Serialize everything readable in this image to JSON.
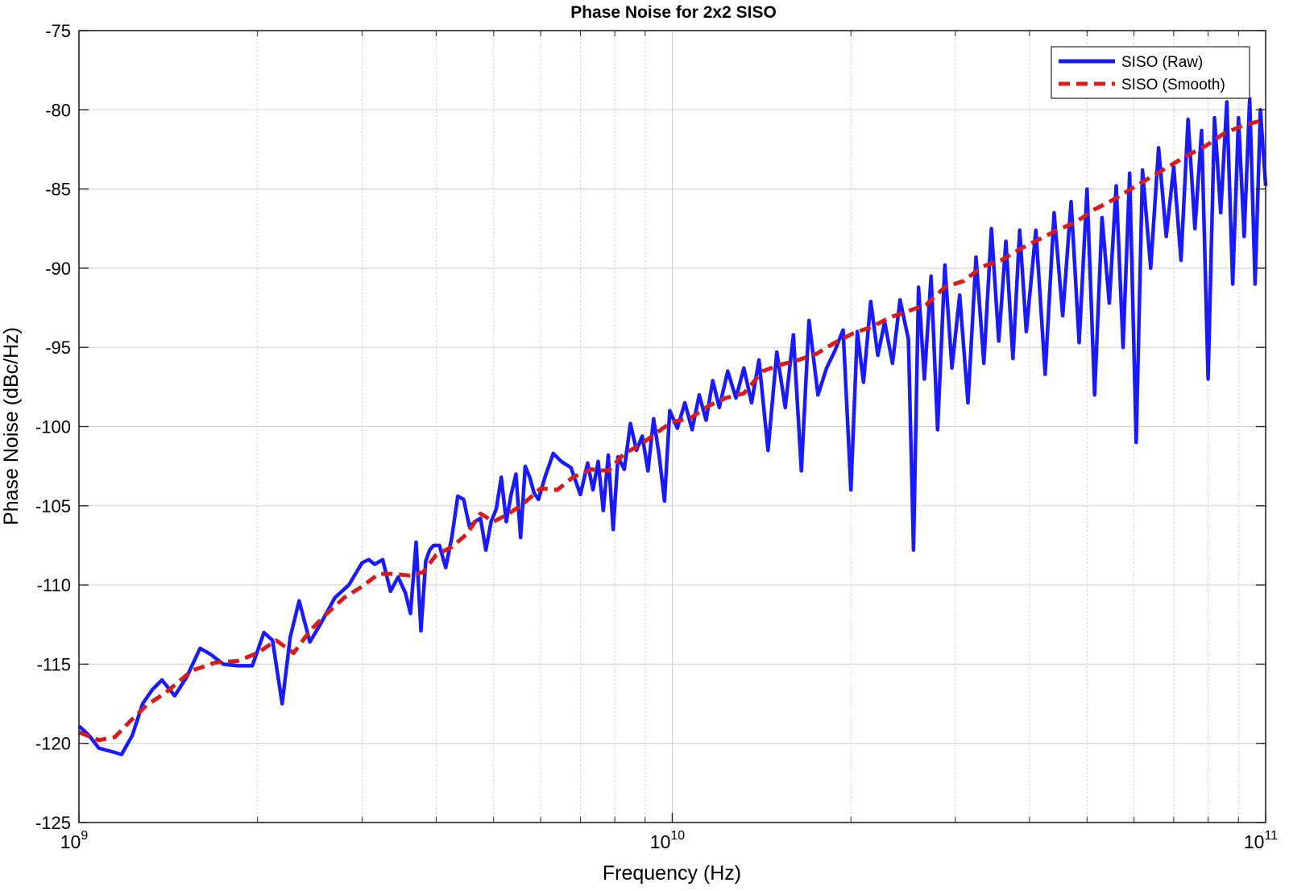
{
  "chart_data": {
    "type": "line",
    "title": "Phase Noise for 2x2 SISO",
    "xlabel": "Frequency (Hz)",
    "ylabel": "Phase Noise (dBc/Hz)",
    "x_scale": "log",
    "xlim": [
      1000000000.0,
      100000000000.0
    ],
    "ylim": [
      -125,
      -75
    ],
    "x_ticks": [
      {
        "value": 1000000000.0,
        "base": "10",
        "exp": "9"
      },
      {
        "value": 10000000000.0,
        "base": "10",
        "exp": "10"
      },
      {
        "value": 100000000000.0,
        "base": "10",
        "exp": "11"
      }
    ],
    "y_ticks": [
      {
        "value": -75,
        "label": "-75"
      },
      {
        "value": -80,
        "label": "-80"
      },
      {
        "value": -85,
        "label": "-85"
      },
      {
        "value": -90,
        "label": "-90"
      },
      {
        "value": -95,
        "label": "-95"
      },
      {
        "value": -100,
        "label": "-100"
      },
      {
        "value": -105,
        "label": "-105"
      },
      {
        "value": -110,
        "label": "-110"
      },
      {
        "value": -115,
        "label": "-115"
      },
      {
        "value": -120,
        "label": "-120"
      },
      {
        "value": -125,
        "label": "-125"
      }
    ],
    "grid": true,
    "minor_grid": true,
    "legend_position": "top-right",
    "series": [
      {
        "name": "SISO (Raw)",
        "color": "#1a1aff",
        "style": "solid",
        "x": [
          1000000000.0,
          1040000000.0,
          1080000000.0,
          1130000000.0,
          1180000000.0,
          1230000000.0,
          1280000000.0,
          1330000000.0,
          1380000000.0,
          1450000000.0,
          1520000000.0,
          1600000000.0,
          1670000000.0,
          1750000000.0,
          1850000000.0,
          1960000000.0,
          2050000000.0,
          2120000000.0,
          2200000000.0,
          2270000000.0,
          2350000000.0,
          2450000000.0,
          2550000000.0,
          2700000000.0,
          2850000000.0,
          3000000000.0,
          3080000000.0,
          3150000000.0,
          3250000000.0,
          3350000000.0,
          3450000000.0,
          3550000000.0,
          3620000000.0,
          3700000000.0,
          3770000000.0,
          3840000000.0,
          3900000000.0,
          3960000000.0,
          4050000000.0,
          4150000000.0,
          4250000000.0,
          4350000000.0,
          4450000000.0,
          4550000000.0,
          4650000000.0,
          4750000000.0,
          4850000000.0,
          4950000000.0,
          5050000000.0,
          5150000000.0,
          5250000000.0,
          5350000000.0,
          5450000000.0,
          5550000000.0,
          5650000000.0,
          5750000000.0,
          5850000000.0,
          5950000000.0,
          6100000000.0,
          6300000000.0,
          6500000000.0,
          6750000000.0,
          7000000000.0,
          7200000000.0,
          7350000000.0,
          7500000000.0,
          7650000000.0,
          7800000000.0,
          7950000000.0,
          8100000000.0,
          8300000000.0,
          8500000000.0,
          8700000000.0,
          8900000000.0,
          9100000000.0,
          9300000000.0,
          9500000000.0,
          9700000000.0,
          9900000000.0,
          10200000000.0,
          10500000000.0,
          10800000000.0,
          11100000000.0,
          11400000000.0,
          11700000000.0,
          12000000000.0,
          12400000000.0,
          12800000000.0,
          13200000000.0,
          13600000000.0,
          14000000000.0,
          14500000000.0,
          15000000000.0,
          15500000000.0,
          16000000000.0,
          16500000000.0,
          17000000000.0,
          17600000000.0,
          18200000000.0,
          18800000000.0,
          19400000000.0,
          20000000000.0,
          20500000000.0,
          21000000000.0,
          21600000000.0,
          22200000000.0,
          22800000000.0,
          23500000000.0,
          24200000000.0,
          25000000000.0,
          25500000000.0,
          26000000000.0,
          26600000000.0,
          27300000000.0,
          28000000000.0,
          28800000000.0,
          29600000000.0,
          30500000000.0,
          31500000000.0,
          32500000000.0,
          33500000000.0,
          34500000000.0,
          35500000000.0,
          36500000000.0,
          37500000000.0,
          38500000000.0,
          39500000000.0,
          41000000000.0,
          42500000000.0,
          44000000000.0,
          45500000000.0,
          47000000000.0,
          48500000000.0,
          50000000000.0,
          51500000000.0,
          53000000000.0,
          54500000000.0,
          56000000000.0,
          57500000000.0,
          59000000000.0,
          60500000000.0,
          62000000000.0,
          64000000000.0,
          66000000000.0,
          68000000000.0,
          70000000000.0,
          72000000000.0,
          74000000000.0,
          76000000000.0,
          78000000000.0,
          80000000000.0,
          82000000000.0,
          84000000000.0,
          86000000000.0,
          88000000000.0,
          90000000000.0,
          92000000000.0,
          94000000000.0,
          96000000000.0,
          98000000000.0,
          100000000000.0
        ],
        "y": [
          -118.9,
          -119.5,
          -120.3,
          -120.5,
          -120.7,
          -119.5,
          -117.5,
          -116.6,
          -116.0,
          -117.0,
          -115.8,
          -114.0,
          -114.4,
          -115.0,
          -115.1,
          -115.1,
          -113.0,
          -113.5,
          -117.5,
          -113.3,
          -111.0,
          -113.6,
          -112.5,
          -110.8,
          -110.0,
          -108.6,
          -108.4,
          -108.7,
          -108.4,
          -110.4,
          -109.5,
          -110.5,
          -111.8,
          -107.3,
          -112.9,
          -108.5,
          -107.8,
          -107.5,
          -107.5,
          -108.9,
          -107.0,
          -104.4,
          -104.6,
          -106.3,
          -106.0,
          -105.8,
          -107.8,
          -106.0,
          -105.2,
          -103.2,
          -106.0,
          -104.3,
          -103.0,
          -107.0,
          -102.5,
          -103.2,
          -104.2,
          -104.6,
          -103.2,
          -101.7,
          -102.2,
          -102.6,
          -104.3,
          -102.3,
          -104.0,
          -102.2,
          -105.3,
          -101.8,
          -106.5,
          -101.9,
          -102.7,
          -99.8,
          -101.5,
          -100.6,
          -102.8,
          -99.5,
          -101.8,
          -104.7,
          -99.0,
          -100.1,
          -98.5,
          -100.2,
          -98.0,
          -99.6,
          -97.1,
          -98.8,
          -96.5,
          -98.2,
          -96.3,
          -98.5,
          -95.8,
          -101.5,
          -95.3,
          -98.8,
          -94.2,
          -102.8,
          -93.3,
          -98.0,
          -96.3,
          -95.2,
          -93.9,
          -104.0,
          -94.0,
          -97.2,
          -92.1,
          -95.5,
          -93.4,
          -96.0,
          -92.0,
          -94.5,
          -107.8,
          -91.2,
          -97.0,
          -90.5,
          -100.2,
          -89.8,
          -96.3,
          -91.7,
          -98.5,
          -89.3,
          -96.0,
          -87.5,
          -94.6,
          -88.3,
          -95.7,
          -87.6,
          -94.0,
          -87.6,
          -96.7,
          -86.5,
          -93.0,
          -85.8,
          -94.7,
          -85.0,
          -98.0,
          -86.8,
          -92.2,
          -84.8,
          -95.0,
          -84.0,
          -101.0,
          -83.8,
          -90.0,
          -82.4,
          -88.0,
          -83.6,
          -89.5,
          -80.6,
          -87.5,
          -81.3,
          -97.0,
          -80.5,
          -86.5,
          -79.5,
          -91.0,
          -80.5,
          -88.0,
          -79.3,
          -91.0,
          -80.0,
          -84.8
        ]
      },
      {
        "name": "SISO (Smooth)",
        "color": "#d81b1b",
        "style": "dashed",
        "x": [
          1000000000.0,
          1080000000.0,
          1150000000.0,
          1220000000.0,
          1300000000.0,
          1400000000.0,
          1550000000.0,
          1700000000.0,
          1850000000.0,
          2000000000.0,
          2150000000.0,
          2300000000.0,
          2450000000.0,
          2600000000.0,
          2800000000.0,
          3000000000.0,
          3200000000.0,
          3400000000.0,
          3600000000.0,
          3800000000.0,
          4000000000.0,
          4250000000.0,
          4500000000.0,
          4750000000.0,
          5000000000.0,
          5300000000.0,
          5600000000.0,
          6000000000.0,
          6400000000.0,
          6800000000.0,
          7300000000.0,
          7800000000.0,
          8300000000.0,
          8800000000.0,
          9400000000.0,
          10000000000.0,
          10700000000.0,
          11500000000.0,
          12300000000.0,
          13200000000.0,
          14200000000.0,
          15200000000.0,
          16300000000.0,
          17500000000.0,
          18800000000.0,
          20200000000.0,
          21700000000.0,
          23300000000.0,
          25000000000.0,
          26800000000.0,
          28800000000.0,
          31000000000.0,
          33300000000.0,
          35800000000.0,
          38500000000.0,
          41400000000.0,
          44500000000.0,
          47800000000.0,
          51400000000.0,
          55200000000.0,
          59300000000.0,
          63700000000.0,
          68500000000.0,
          73600000000.0,
          79100000000.0,
          85000000000.0,
          91400000000.0,
          100000000000.0
        ],
        "y": [
          -119.3,
          -119.8,
          -119.6,
          -118.6,
          -117.6,
          -116.8,
          -115.4,
          -114.9,
          -114.8,
          -114.3,
          -113.5,
          -114.3,
          -112.9,
          -111.9,
          -110.8,
          -110.1,
          -109.3,
          -109.3,
          -109.4,
          -109.2,
          -108.1,
          -107.6,
          -106.8,
          -105.5,
          -106.0,
          -105.5,
          -104.9,
          -103.9,
          -104.0,
          -103.2,
          -102.7,
          -102.8,
          -101.7,
          -101.2,
          -100.4,
          -99.7,
          -99.5,
          -98.7,
          -98.2,
          -97.9,
          -96.5,
          -96.1,
          -95.8,
          -95.4,
          -94.7,
          -94.1,
          -93.7,
          -93.1,
          -92.7,
          -92.3,
          -91.2,
          -90.8,
          -89.9,
          -89.5,
          -88.8,
          -88.2,
          -87.6,
          -87.1,
          -86.3,
          -85.7,
          -85.0,
          -84.3,
          -83.6,
          -82.9,
          -82.3,
          -81.5,
          -81.0,
          -80.6
        ]
      }
    ]
  }
}
